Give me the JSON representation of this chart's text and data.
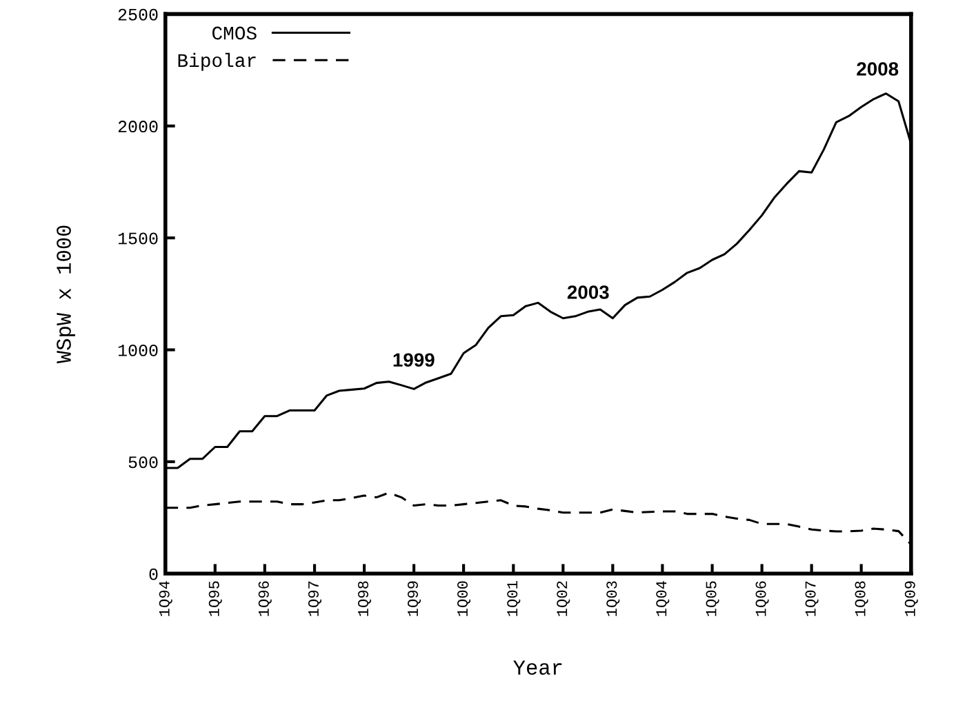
{
  "chart_data": {
    "type": "line",
    "xlabel": "Year",
    "ylabel": "WSpW x 1000",
    "x": [
      "1994-01",
      "1994-04",
      "1994-07",
      "1994-10",
      "1995-01",
      "1995-04",
      "1995-07",
      "1995-10",
      "1996-01",
      "1996-04",
      "1996-07",
      "1996-10",
      "1997-01",
      "1997-04",
      "1997-07",
      "1997-10",
      "1998-01",
      "1998-04",
      "1998-07",
      "1998-10",
      "1999-01",
      "1999-04",
      "1999-07",
      "1999-10",
      "2000-01",
      "2000-04",
      "2000-07",
      "2000-10",
      "2001-01",
      "2001-04",
      "2001-07",
      "2001-10",
      "2002-01",
      "2002-04",
      "2002-07",
      "2002-10",
      "2003-01",
      "2003-04",
      "2003-07",
      "2003-10",
      "2004-01",
      "2004-04",
      "2004-07",
      "2004-10",
      "2005-01",
      "2005-04",
      "2005-07",
      "2005-10",
      "2006-01",
      "2006-04",
      "2006-07",
      "2006-10",
      "2007-01",
      "2007-04",
      "2007-07",
      "2007-10",
      "2008-01",
      "2008-04",
      "2008-07",
      "2008-10",
      "2009-01"
    ],
    "series": [
      {
        "name": "CMOS",
        "color": "#000000",
        "line_style": "solid",
        "values": [
          472,
          472,
          513,
          513,
          566,
          566,
          636,
          636,
          704,
          704,
          729,
          729,
          729,
          796,
          817,
          822,
          827,
          852,
          858,
          842,
          825,
          854,
          873,
          893,
          985,
          1022,
          1098,
          1150,
          1155,
          1195,
          1210,
          1170,
          1141,
          1150,
          1170,
          1180,
          1141,
          1200,
          1233,
          1238,
          1268,
          1303,
          1344,
          1365,
          1402,
          1427,
          1474,
          1535,
          1601,
          1679,
          1741,
          1798,
          1792,
          1895,
          2017,
          2044,
          2085,
          2120,
          2145,
          2110,
          1920
        ]
      },
      {
        "name": "Bipolar",
        "color": "#000000",
        "line_style": "dashed",
        "values": [
          294,
          294,
          294,
          305,
          310,
          316,
          322,
          322,
          322,
          322,
          310,
          310,
          318,
          328,
          328,
          338,
          349,
          341,
          361,
          341,
          304,
          310,
          304,
          304,
          310,
          316,
          322,
          328,
          304,
          300,
          290,
          283,
          273,
          273,
          273,
          273,
          287,
          280,
          273,
          276,
          278,
          278,
          267,
          267,
          267,
          255,
          246,
          240,
          222,
          222,
          222,
          210,
          197,
          192,
          189,
          189,
          192,
          201,
          197,
          190,
          130
        ]
      }
    ],
    "xlim": [
      "1994-01",
      "2009-01"
    ],
    "xticks": [
      {
        "value": "1994-01",
        "label": "1Q94"
      },
      {
        "value": "1995-01",
        "label": "1Q95"
      },
      {
        "value": "1996-01",
        "label": "1Q96"
      },
      {
        "value": "1997-01",
        "label": "1Q97"
      },
      {
        "value": "1998-01",
        "label": "1Q98"
      },
      {
        "value": "1999-01",
        "label": "1Q99"
      },
      {
        "value": "2000-01",
        "label": "1Q00"
      },
      {
        "value": "2001-01",
        "label": "1Q01"
      },
      {
        "value": "2002-01",
        "label": "1Q02"
      },
      {
        "value": "2003-01",
        "label": "1Q03"
      },
      {
        "value": "2004-01",
        "label": "1Q04"
      },
      {
        "value": "2005-01",
        "label": "1Q05"
      },
      {
        "value": "2006-01",
        "label": "1Q06"
      },
      {
        "value": "2007-01",
        "label": "1Q07"
      },
      {
        "value": "2008-01",
        "label": "1Q08"
      },
      {
        "value": "2009-01",
        "label": "1Q09"
      }
    ],
    "ylim": [
      0,
      2500
    ],
    "yticks": [
      0,
      500,
      1000,
      1500,
      2000,
      2500
    ],
    "grid": false,
    "legend": "top left",
    "marker": "none",
    "annotations": [
      "1999",
      "2003",
      "2008"
    ]
  }
}
